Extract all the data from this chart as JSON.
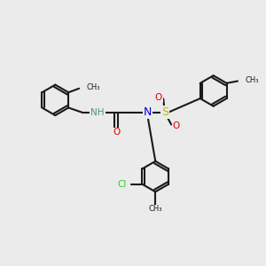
{
  "bg_color": "#ebebeb",
  "bond_color": "#1a1a1a",
  "N_color": "#0000dd",
  "NH_color": "#4a9090",
  "O_color": "#dd0000",
  "S_color": "#bbbb00",
  "Cl_color": "#33cc33",
  "lw": 1.5,
  "R": 0.58,
  "xlim": [
    0,
    10
  ],
  "ylim": [
    0,
    10
  ]
}
